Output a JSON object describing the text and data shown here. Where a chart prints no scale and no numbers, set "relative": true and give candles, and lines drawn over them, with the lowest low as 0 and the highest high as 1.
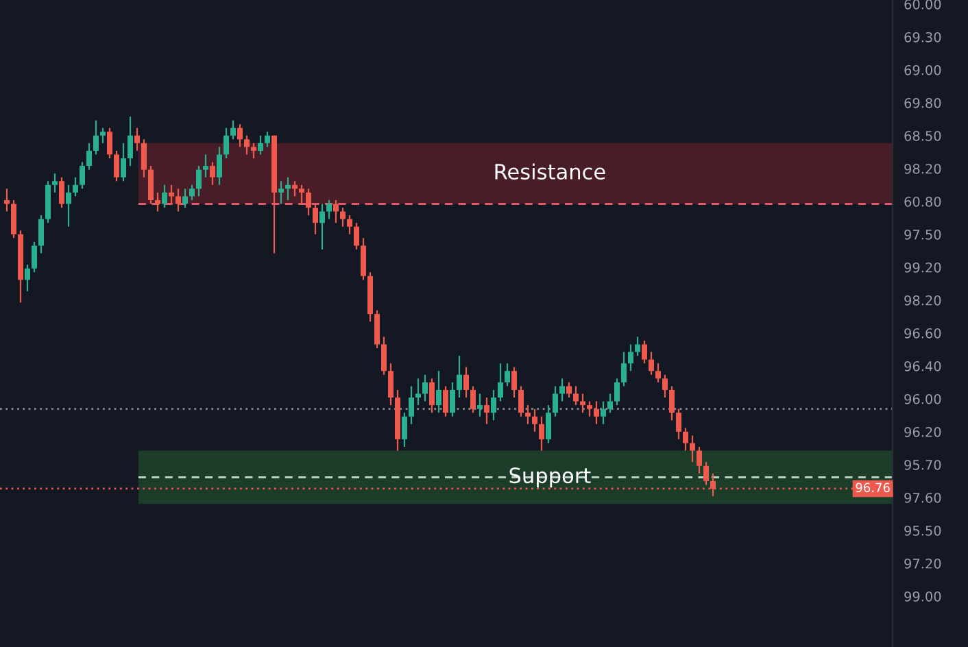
{
  "chart_data": {
    "type": "candlestick",
    "relative": true,
    "categories": [
      null,
      null,
      null,
      null,
      null,
      null,
      null,
      null,
      null,
      null,
      null,
      null,
      null,
      null,
      null,
      null,
      null,
      null,
      null,
      null,
      null,
      null,
      null,
      null,
      null,
      null,
      null,
      null,
      null,
      null,
      null,
      null,
      null,
      null,
      null,
      null,
      null,
      null,
      null,
      null,
      null,
      null,
      null,
      null,
      null,
      null,
      null,
      null,
      null,
      null,
      null,
      null,
      null,
      null,
      null,
      null,
      null,
      null,
      null,
      null,
      null,
      null,
      null,
      null,
      null,
      null,
      null,
      null,
      null,
      null,
      null,
      null,
      null,
      null,
      null,
      null,
      null,
      null,
      null,
      null,
      null,
      null,
      null,
      null,
      null,
      null,
      null,
      null,
      null,
      null,
      null,
      null,
      null,
      null,
      null,
      null,
      null,
      null,
      null,
      null,
      null,
      null,
      null,
      null
    ],
    "ohlc": [
      [
        0.78,
        0.81,
        0.75,
        0.77
      ],
      [
        0.77,
        0.78,
        0.68,
        0.69
      ],
      [
        0.69,
        0.7,
        0.51,
        0.57
      ],
      [
        0.57,
        0.61,
        0.54,
        0.6
      ],
      [
        0.6,
        0.67,
        0.59,
        0.66
      ],
      [
        0.66,
        0.74,
        0.64,
        0.73
      ],
      [
        0.73,
        0.83,
        0.72,
        0.82
      ],
      [
        0.82,
        0.85,
        0.8,
        0.83
      ],
      [
        0.83,
        0.84,
        0.76,
        0.77
      ],
      [
        0.77,
        0.82,
        0.71,
        0.8
      ],
      [
        0.8,
        0.84,
        0.79,
        0.82
      ],
      [
        0.82,
        0.88,
        0.81,
        0.87
      ],
      [
        0.87,
        0.93,
        0.86,
        0.91
      ],
      [
        0.91,
        0.99,
        0.9,
        0.95
      ],
      [
        0.95,
        0.97,
        0.93,
        0.96
      ],
      [
        0.96,
        0.97,
        0.89,
        0.9
      ],
      [
        0.9,
        0.91,
        0.83,
        0.84
      ],
      [
        0.84,
        0.93,
        0.83,
        0.89
      ],
      [
        0.89,
        1,
        0.87,
        0.95
      ],
      [
        0.95,
        0.97,
        0.91,
        0.93
      ],
      [
        0.93,
        0.94,
        0.84,
        0.86
      ],
      [
        0.86,
        0.87,
        0.77,
        0.78
      ],
      [
        0.78,
        0.8,
        0.75,
        0.77
      ],
      [
        0.77,
        0.82,
        0.76,
        0.8
      ],
      [
        0.8,
        0.82,
        0.77,
        0.79
      ],
      [
        0.79,
        0.81,
        0.75,
        0.77
      ],
      [
        0.77,
        0.81,
        0.76,
        0.79
      ],
      [
        0.79,
        0.82,
        0.78,
        0.81
      ],
      [
        0.81,
        0.87,
        0.79,
        0.86
      ],
      [
        0.86,
        0.9,
        0.84,
        0.87
      ],
      [
        0.87,
        0.88,
        0.82,
        0.84
      ],
      [
        0.84,
        0.92,
        0.82,
        0.9
      ],
      [
        0.9,
        0.97,
        0.89,
        0.95
      ],
      [
        0.95,
        0.99,
        0.94,
        0.97
      ],
      [
        0.97,
        0.98,
        0.92,
        0.94
      ],
      [
        0.94,
        0.95,
        0.9,
        0.92
      ],
      [
        0.92,
        0.93,
        0.89,
        0.91
      ],
      [
        0.91,
        0.95,
        0.9,
        0.93
      ],
      [
        0.93,
        0.96,
        0.92,
        0.95
      ],
      [
        0.95,
        0.95,
        0.64,
        0.8
      ],
      [
        0.8,
        0.83,
        0.77,
        0.81
      ],
      [
        0.81,
        0.84,
        0.78,
        0.82
      ],
      [
        0.82,
        0.83,
        0.79,
        0.81
      ],
      [
        0.81,
        0.82,
        0.77,
        0.8
      ],
      [
        0.8,
        0.81,
        0.74,
        0.76
      ],
      [
        0.76,
        0.77,
        0.69,
        0.72
      ],
      [
        0.72,
        0.77,
        0.65,
        0.75
      ],
      [
        0.75,
        0.78,
        0.73,
        0.77
      ],
      [
        0.77,
        0.78,
        0.72,
        0.75
      ],
      [
        0.75,
        0.76,
        0.71,
        0.73
      ],
      [
        0.73,
        0.74,
        0.69,
        0.71
      ],
      [
        0.71,
        0.72,
        0.65,
        0.66
      ],
      [
        0.66,
        0.68,
        0.57,
        0.58
      ],
      [
        0.58,
        0.59,
        0.46,
        0.48
      ],
      [
        0.48,
        0.49,
        0.39,
        0.4
      ],
      [
        0.4,
        0.42,
        0.32,
        0.33
      ],
      [
        0.33,
        0.35,
        0.24,
        0.26
      ],
      [
        0.26,
        0.28,
        0.12,
        0.15
      ],
      [
        0.15,
        0.22,
        0.13,
        0.21
      ],
      [
        0.21,
        0.29,
        0.19,
        0.26
      ],
      [
        0.26,
        0.31,
        0.24,
        0.27
      ],
      [
        0.27,
        0.32,
        0.25,
        0.3
      ],
      [
        0.3,
        0.31,
        0.22,
        0.24
      ],
      [
        0.24,
        0.33,
        0.22,
        0.28
      ],
      [
        0.28,
        0.29,
        0.21,
        0.22
      ],
      [
        0.22,
        0.3,
        0.21,
        0.28
      ],
      [
        0.28,
        0.37,
        0.26,
        0.32
      ],
      [
        0.32,
        0.34,
        0.26,
        0.28
      ],
      [
        0.28,
        0.29,
        0.22,
        0.23
      ],
      [
        0.23,
        0.27,
        0.21,
        0.24
      ],
      [
        0.24,
        0.26,
        0.19,
        0.22
      ],
      [
        0.22,
        0.28,
        0.2,
        0.26
      ],
      [
        0.26,
        0.35,
        0.25,
        0.3
      ],
      [
        0.3,
        0.35,
        0.29,
        0.33
      ],
      [
        0.33,
        0.34,
        0.26,
        0.28
      ],
      [
        0.28,
        0.29,
        0.21,
        0.22
      ],
      [
        0.22,
        0.24,
        0.19,
        0.21
      ],
      [
        0.21,
        0.23,
        0.17,
        0.19
      ],
      [
        0.19,
        0.21,
        0.12,
        0.15
      ],
      [
        0.15,
        0.24,
        0.14,
        0.22
      ],
      [
        0.22,
        0.29,
        0.21,
        0.27
      ],
      [
        0.27,
        0.31,
        0.25,
        0.29
      ],
      [
        0.29,
        0.3,
        0.26,
        0.27
      ],
      [
        0.27,
        0.29,
        0.24,
        0.25
      ],
      [
        0.25,
        0.27,
        0.22,
        0.24
      ],
      [
        0.24,
        0.25,
        0.21,
        0.23
      ],
      [
        0.23,
        0.25,
        0.19,
        0.21
      ],
      [
        0.21,
        0.25,
        0.19,
        0.23
      ],
      [
        0.23,
        0.27,
        0.22,
        0.25
      ],
      [
        0.25,
        0.31,
        0.24,
        0.3
      ],
      [
        0.3,
        0.38,
        0.29,
        0.35
      ],
      [
        0.35,
        0.4,
        0.33,
        0.38
      ],
      [
        0.38,
        0.42,
        0.37,
        0.4
      ],
      [
        0.4,
        0.41,
        0.35,
        0.36
      ],
      [
        0.36,
        0.38,
        0.32,
        0.33
      ],
      [
        0.33,
        0.35,
        0.3,
        0.31
      ],
      [
        0.31,
        0.32,
        0.26,
        0.28
      ],
      [
        0.28,
        0.29,
        0.2,
        0.22
      ],
      [
        0.22,
        0.23,
        0.15,
        0.17
      ],
      [
        0.17,
        0.18,
        0.12,
        0.14
      ],
      [
        0.14,
        0.16,
        0.09,
        0.12
      ],
      [
        0.12,
        0.13,
        0.06,
        0.08
      ],
      [
        0.08,
        0.09,
        0.03,
        0.04
      ],
      [
        0.04,
        0.06,
        0,
        0.02
      ]
    ],
    "annotations": [
      "60.00",
      "69.30",
      "69.00",
      "69.80",
      "68.50",
      "98.20",
      "60.80",
      "97.50",
      "99.20",
      "98.20",
      "96.60",
      "96.40",
      "96.00",
      "96.20",
      "95.70",
      "97.60",
      "95.50",
      "97.20",
      "99.00",
      {
        "text": "96.76",
        "y": 0.02
      }
    ],
    "bands": [
      {
        "axis": "y",
        "from": 0.77,
        "to": 0.93,
        "label": "Resistance",
        "color": "#5a1f2b"
      },
      {
        "axis": "y",
        "from": -0.02,
        "to": 0.12,
        "label": "Support",
        "color": "#1f4a2c"
      }
    ],
    "ref_lines": [
      {
        "axis": "y",
        "value": 0.77,
        "color": "#e05a6a",
        "line_style": "dashed"
      },
      {
        "axis": "y",
        "value": 0.05,
        "color": "#c8d8c8",
        "line_style": "dashed"
      },
      {
        "axis": "y",
        "value": 0.23,
        "color": "#8a8f99",
        "line_style": "dotted"
      },
      {
        "axis": "y",
        "value": 0.02,
        "color": "#f05350",
        "line_style": "dotted"
      }
    ]
  }
}
